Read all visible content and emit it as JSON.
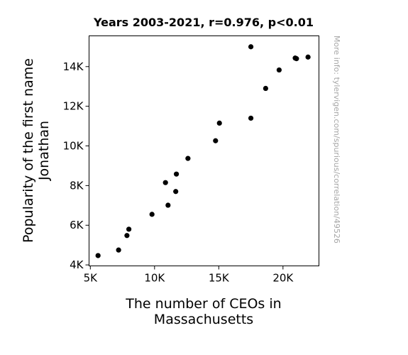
{
  "chart_data": {
    "type": "scatter",
    "title": "Years 2003-2021, r=0.976, p<0.01",
    "xlabel_lines": [
      "The number of CEOs in",
      "Massachusetts"
    ],
    "ylabel_lines": [
      "Popularity of the first name",
      "Jonathan"
    ],
    "watermark": "More info: tylervigen.com/spurious/correlation/49526",
    "xlim": [
      4900,
      22800
    ],
    "ylim": [
      3950,
      15550
    ],
    "xticks": [
      {
        "value": 5000,
        "label": "5K"
      },
      {
        "value": 10000,
        "label": "10K"
      },
      {
        "value": 15000,
        "label": "15K"
      },
      {
        "value": 20000,
        "label": "20K"
      }
    ],
    "yticks": [
      {
        "value": 4000,
        "label": "4K"
      },
      {
        "value": 6000,
        "label": "6K"
      },
      {
        "value": 8000,
        "label": "8K"
      },
      {
        "value": 10000,
        "label": "10K"
      },
      {
        "value": 12000,
        "label": "12K"
      },
      {
        "value": 14000,
        "label": "14K"
      }
    ],
    "grid": false,
    "marker_color": "#000000",
    "points": [
      {
        "x": 5600,
        "y": 4470
      },
      {
        "x": 7200,
        "y": 4750
      },
      {
        "x": 7850,
        "y": 5480
      },
      {
        "x": 8000,
        "y": 5800
      },
      {
        "x": 9800,
        "y": 6550
      },
      {
        "x": 11050,
        "y": 7010
      },
      {
        "x": 10850,
        "y": 8150
      },
      {
        "x": 11650,
        "y": 7700
      },
      {
        "x": 11700,
        "y": 8580
      },
      {
        "x": 12600,
        "y": 9370
      },
      {
        "x": 14750,
        "y": 10260
      },
      {
        "x": 15050,
        "y": 11150
      },
      {
        "x": 17500,
        "y": 11400
      },
      {
        "x": 17500,
        "y": 15000
      },
      {
        "x": 18650,
        "y": 12900
      },
      {
        "x": 19700,
        "y": 13830
      },
      {
        "x": 20950,
        "y": 14430
      },
      {
        "x": 21050,
        "y": 14400
      },
      {
        "x": 21950,
        "y": 14480
      }
    ]
  }
}
